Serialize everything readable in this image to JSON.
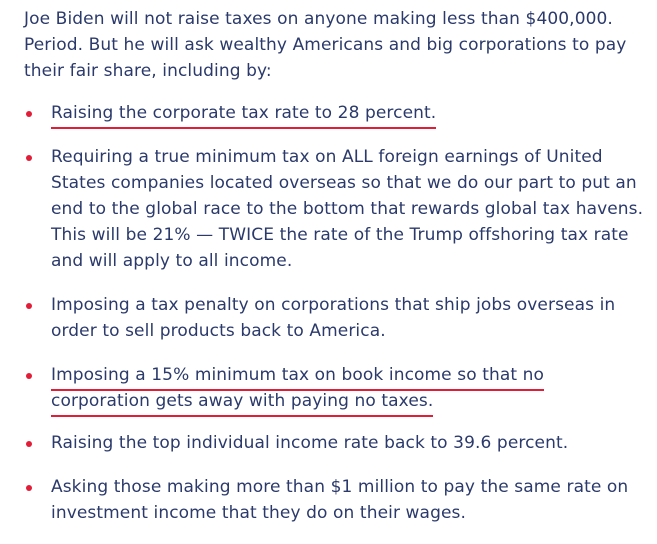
{
  "intro": {
    "line1": "Joe Biden will not raise taxes on anyone making less than $400,000.",
    "line2": "Period. But he will ask wealthy Americans and big corporations to pay",
    "line3": "their fair share, including by:"
  },
  "colors": {
    "text": "#2b3a6b",
    "accent": "#e21d38"
  },
  "items": [
    {
      "lines": [
        "Raising the corporate tax rate to 28 percent."
      ],
      "underlined": true
    },
    {
      "lines": [
        "Requiring a true minimum tax on ALL foreign earnings of United",
        "States companies located overseas so that we do our part to put an",
        "end to the global race to the bottom that rewards global tax havens.",
        "This will be 21% — TWICE the rate of the Trump offshoring tax rate",
        "and will apply to all income."
      ],
      "underlined": false
    },
    {
      "lines": [
        "Imposing a tax penalty on corporations that ship jobs overseas in",
        "order to sell products back to America."
      ],
      "underlined": false
    },
    {
      "lines": [
        "Imposing a 15% minimum tax on book income so that no",
        "corporation gets away with paying no taxes."
      ],
      "underlined": true
    },
    {
      "lines": [
        "Raising the top individual income rate back to 39.6 percent."
      ],
      "underlined": false
    },
    {
      "lines": [
        "Asking those making more than $1 million to pay the same rate on",
        "investment income that they do on their wages."
      ],
      "underlined": false
    }
  ]
}
